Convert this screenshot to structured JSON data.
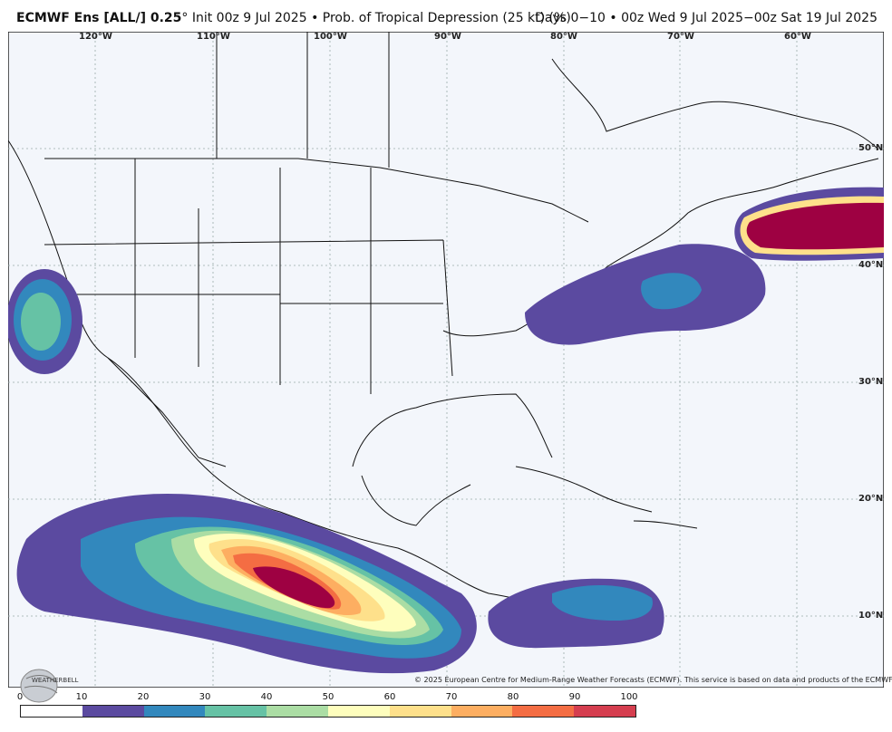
{
  "header": {
    "title_bold": "ECMWF Ens [ALL/] 0.25",
    "title_deg": "°",
    "title_rest": " Init 00z 9 Jul 2025 • Prob. of Tropical Depression (25 kt) (%)",
    "valid": "Days 0−10 • 00z Wed 9 Jul 2025−00z Sat 19 Jul 2025"
  },
  "map": {
    "lon_labels": [
      "120°W",
      "110°W",
      "100°W",
      "90°W",
      "80°W",
      "70°W",
      "60°W"
    ],
    "lat_labels": [
      "50°N",
      "40°N",
      "30°N",
      "20°N",
      "10°N"
    ],
    "copyright": "© 2025 European Centre for Medium-Range Weather Forecasts (ECMWF). This service is based on data and products of the ECMWF.",
    "logo_text": "WEATHERBELL"
  },
  "legend": {
    "ticks": [
      "0",
      "10",
      "20",
      "30",
      "40",
      "50",
      "60",
      "70",
      "80",
      "90",
      "100"
    ],
    "colors": [
      "#ffffff",
      "#5b4aa0",
      "#3288bd",
      "#66c2a5",
      "#abdda4",
      "#fefebd",
      "#fee08b",
      "#fdae61",
      "#f46d43",
      "#d53e4f",
      "#9e0142"
    ]
  }
}
